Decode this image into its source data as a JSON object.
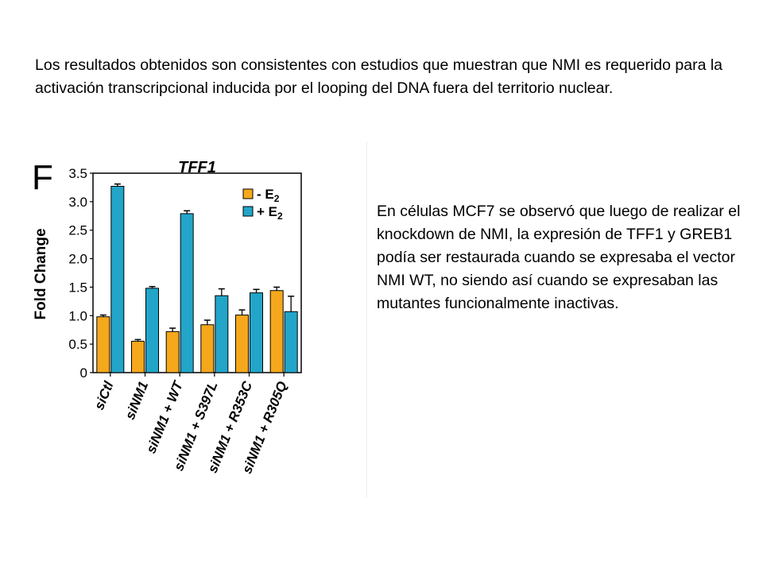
{
  "slide": {
    "top_paragraph": "Los resultados obtenidos son consistentes con estudios que muestran que NMI es requerido para la activación transcripcional inducida por el looping del DNA fuera del territorio  nuclear.",
    "right_paragraph": "En células MCF7 se observó que luego de realizar el knockdown de NMI, la expresión de TFF1 y GREB1 podía ser restaurada cuando se expresaba el vector NMI WT, no siendo así cuando se expresaban las mutantes funcionalmente inactivas."
  },
  "chart_data": {
    "type": "bar",
    "panel_label": "F",
    "title": "TFF1",
    "ylabel": "Fold Change",
    "xlabel": "",
    "ylim": [
      0,
      3.5
    ],
    "yticks": [
      0,
      0.5,
      1.0,
      1.5,
      2.0,
      2.5,
      3.0,
      3.5
    ],
    "ytick_labels": [
      "0",
      "0.5",
      "1.0",
      "1.5",
      "2.0",
      "2.5",
      "3.0",
      "3.5"
    ],
    "grid": false,
    "legend_position": "top-right",
    "categories": [
      "siCtl",
      "siNM1",
      "siNM1 + WT",
      "siNM1 + S397L",
      "siNM1 + R353C",
      "siNM1 + R305Q"
    ],
    "series": [
      {
        "name": "- E",
        "subscript": "2",
        "color": "#f5a81c",
        "values": [
          0.98,
          0.55,
          0.72,
          0.84,
          1.01,
          1.44
        ],
        "errors": [
          0.03,
          0.03,
          0.06,
          0.08,
          0.09,
          0.06
        ]
      },
      {
        "name": "+ E",
        "subscript": "2",
        "color": "#22a5c8",
        "values": [
          3.27,
          1.48,
          2.79,
          1.35,
          1.4,
          1.07
        ],
        "errors": [
          0.04,
          0.03,
          0.05,
          0.12,
          0.06,
          0.27
        ]
      }
    ]
  }
}
